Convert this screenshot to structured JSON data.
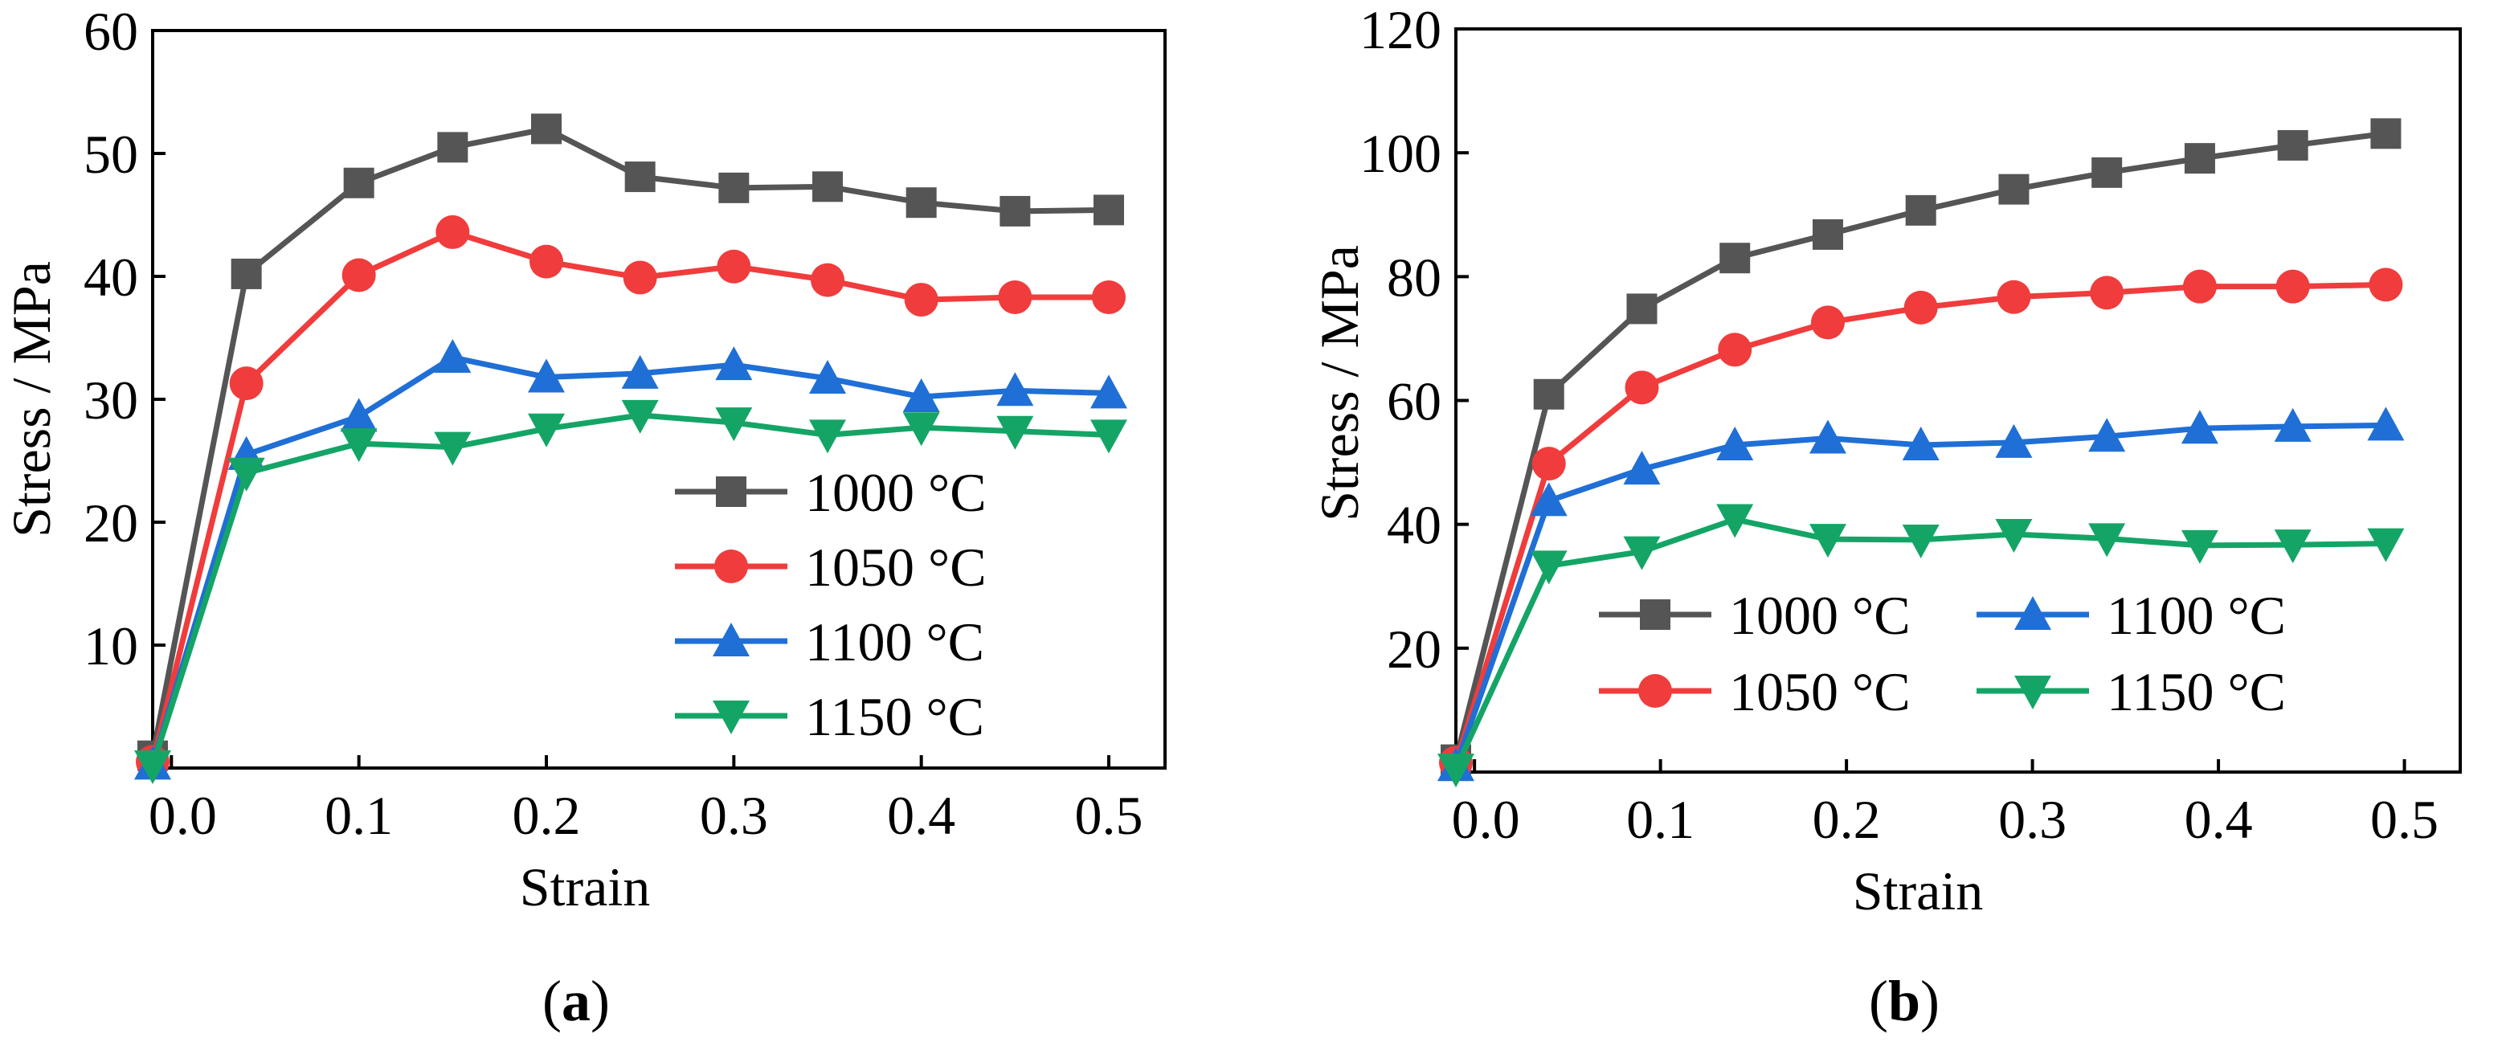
{
  "figure": {
    "panels": [
      {
        "label_open": "(",
        "label_letter": "a",
        "label_close": ")"
      },
      {
        "label_open": "(",
        "label_letter": "b",
        "label_close": ")"
      }
    ]
  },
  "chart_data": [
    {
      "type": "line",
      "title": "",
      "xlabel": "Strain",
      "ylabel": "Stress / MPa",
      "xlim": [
        -0.01,
        0.53
      ],
      "ylim": [
        0,
        60
      ],
      "xticks": [
        0.0,
        0.1,
        0.2,
        0.3,
        0.4,
        0.5
      ],
      "xtick_labels": [
        "0.0",
        "0.1",
        "0.2",
        "0.3",
        "0.4",
        "0.5"
      ],
      "yticks": [
        10,
        20,
        30,
        40,
        50,
        60
      ],
      "ytick_labels": [
        "10",
        "20",
        "30",
        "40",
        "50",
        "60"
      ],
      "legend_position": "bottom-right",
      "legend_columns": 1,
      "x": [
        -0.01,
        0.04,
        0.1,
        0.15,
        0.2,
        0.25,
        0.3,
        0.35,
        0.4,
        0.45,
        0.5
      ],
      "series": [
        {
          "name": "1000 °C",
          "color": "#555555",
          "marker": "square",
          "values": [
            1,
            40.2,
            47.6,
            50.5,
            52.0,
            48.1,
            47.2,
            47.3,
            46.0,
            45.3,
            45.4
          ]
        },
        {
          "name": "1050 °C",
          "color": "#f03c3c",
          "marker": "circle",
          "values": [
            0.5,
            31.3,
            40.1,
            43.6,
            41.2,
            39.9,
            40.8,
            39.7,
            38.1,
            38.3,
            38.3
          ]
        },
        {
          "name": "1100 °C",
          "color": "#1f6fd6",
          "marker": "triangle-up",
          "values": [
            0.3,
            25.5,
            28.6,
            33.4,
            31.8,
            32.1,
            32.8,
            31.7,
            30.2,
            30.7,
            30.5
          ]
        },
        {
          "name": "1150 °C",
          "color": "#14a566",
          "marker": "triangle-down",
          "values": [
            0.2,
            24.0,
            26.4,
            26.1,
            27.6,
            28.7,
            28.1,
            27.1,
            27.7,
            27.4,
            27.1
          ]
        }
      ]
    },
    {
      "type": "line",
      "title": "",
      "xlabel": "Strain",
      "ylabel": "Stress / MPa",
      "xlim": [
        -0.01,
        0.53
      ],
      "ylim": [
        0,
        120
      ],
      "xticks": [
        0.0,
        0.1,
        0.2,
        0.3,
        0.4,
        0.5
      ],
      "xtick_labels": [
        "0.0",
        "0.1",
        "0.2",
        "0.3",
        "0.4",
        "0.5"
      ],
      "yticks": [
        20,
        40,
        60,
        80,
        100,
        120
      ],
      "ytick_labels": [
        "20",
        "40",
        "60",
        "80",
        "100",
        "120"
      ],
      "legend_position": "bottom-right",
      "legend_columns": 2,
      "x": [
        -0.01,
        0.04,
        0.09,
        0.14,
        0.19,
        0.24,
        0.29,
        0.34,
        0.39,
        0.44,
        0.49
      ],
      "series": [
        {
          "name": "1000 °C",
          "color": "#555555",
          "marker": "square",
          "values": [
            2,
            61.0,
            74.8,
            83.0,
            86.8,
            90.7,
            94.1,
            96.8,
            99.1,
            101.2,
            103.1
          ]
        },
        {
          "name": "1050 °C",
          "color": "#f03c3c",
          "marker": "circle",
          "values": [
            1.5,
            49.8,
            62.1,
            68.2,
            72.6,
            75.0,
            76.7,
            77.4,
            78.4,
            78.4,
            78.7
          ]
        },
        {
          "name": "1100 °C",
          "color": "#1f6fd6",
          "marker": "triangle-up",
          "values": [
            1,
            43.8,
            48.9,
            52.8,
            53.9,
            52.8,
            53.2,
            54.2,
            55.5,
            55.8,
            56.0
          ]
        },
        {
          "name": "1150 °C",
          "color": "#14a566",
          "marker": "triangle-down",
          "values": [
            0.5,
            33.3,
            35.6,
            40.8,
            37.6,
            37.5,
            38.4,
            37.7,
            36.6,
            36.7,
            36.9
          ]
        }
      ]
    }
  ]
}
